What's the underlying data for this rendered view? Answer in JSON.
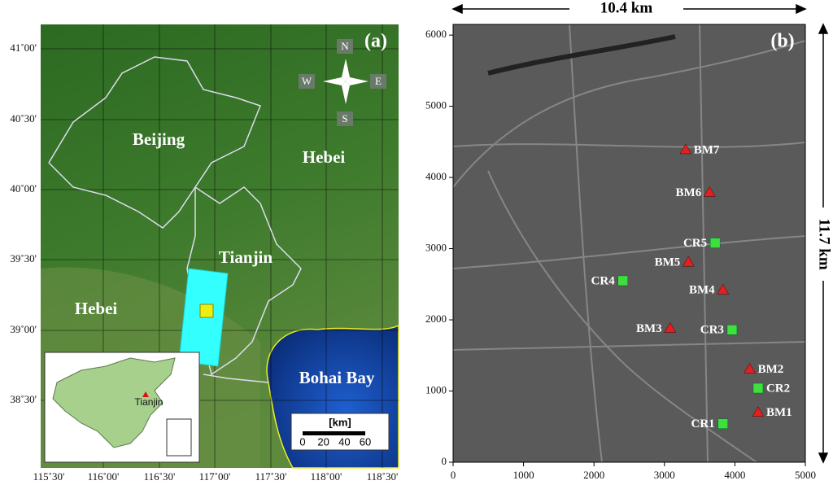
{
  "panel_a": {
    "label": "(a)",
    "lon_labels": [
      "115˚30'",
      "116˚00'",
      "116˚30'",
      "117˚00'",
      "117˚30'",
      "118˚00'",
      "118˚30'"
    ],
    "lat_labels": [
      "41˚00'",
      "40˚30'",
      "40˚00'",
      "39˚30'",
      "39˚00'",
      "38˚30'"
    ],
    "regions": [
      "Beijing",
      "Hebei",
      "Tianjin",
      "Hebei",
      "Bohai Bay"
    ],
    "compass": [
      "N",
      "W",
      "E",
      "S"
    ],
    "inset_label": "Tianjin",
    "scale_bar": {
      "unit": "[km]",
      "ticks": [
        0,
        20,
        40,
        60
      ]
    }
  },
  "panel_b": {
    "label": "(b)",
    "width_label": "10.4 km",
    "height_label": "11.7 km",
    "xlim": [
      0,
      5000
    ],
    "ylim": [
      0,
      6150
    ],
    "xticks": [
      0,
      1000,
      2000,
      3000,
      4000,
      5000
    ],
    "yticks": [
      0,
      1000,
      2000,
      3000,
      4000,
      5000,
      6000
    ],
    "points": [
      {
        "name": "BM7",
        "kind": "triangle",
        "x": 3300,
        "y": 4390
      },
      {
        "name": "BM6",
        "kind": "triangle",
        "x": 3640,
        "y": 3790
      },
      {
        "name": "CR5",
        "kind": "square",
        "x": 3720,
        "y": 3080
      },
      {
        "name": "BM5",
        "kind": "triangle",
        "x": 3340,
        "y": 2810
      },
      {
        "name": "CR4",
        "kind": "square",
        "x": 2410,
        "y": 2550
      },
      {
        "name": "BM4",
        "kind": "triangle",
        "x": 3830,
        "y": 2420
      },
      {
        "name": "BM3",
        "kind": "triangle",
        "x": 3080,
        "y": 1880
      },
      {
        "name": "CR3",
        "kind": "square",
        "x": 3960,
        "y": 1860
      },
      {
        "name": "BM2",
        "kind": "triangle",
        "x": 4210,
        "y": 1310
      },
      {
        "name": "CR2",
        "kind": "square",
        "x": 4330,
        "y": 1040
      },
      {
        "name": "BM1",
        "kind": "triangle",
        "x": 4330,
        "y": 700
      },
      {
        "name": "CR1",
        "kind": "square",
        "x": 3830,
        "y": 540
      }
    ]
  }
}
